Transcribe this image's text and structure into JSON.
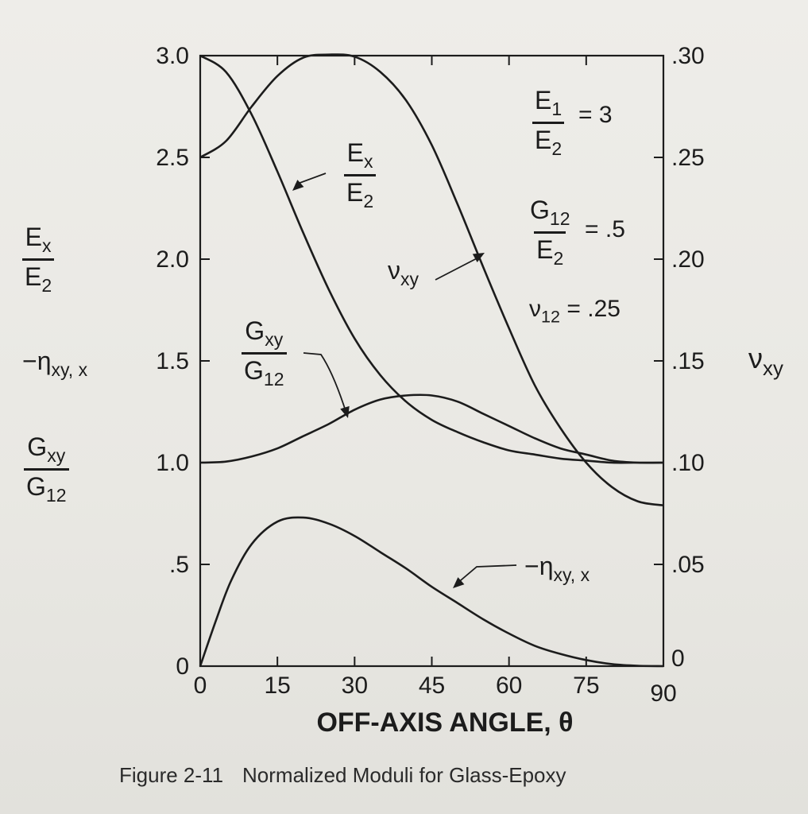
{
  "chart_data": {
    "type": "line",
    "xlabel": "OFF-AXIS ANGLE, θ",
    "x_ticks": [
      0,
      15,
      30,
      45,
      60,
      75,
      90
    ],
    "xlim": [
      0,
      90
    ],
    "y_left_ticks": [
      "0",
      ".5",
      "1.0",
      "1.5",
      "2.0",
      "2.5",
      "3.0"
    ],
    "ylim_left": [
      0,
      3.0
    ],
    "y_right_ticks": [
      "0",
      ".05",
      ".10",
      ".15",
      ".20",
      ".25",
      ".30"
    ],
    "ylim_right": [
      0,
      0.3
    ],
    "left_axis_labels": {
      "ex_num": "E",
      "ex_num_sub": "x",
      "ex_den": "E",
      "ex_den_sub": "2",
      "eta_prefix": "−η",
      "eta_sub": "xy, x",
      "gxy_num": "G",
      "gxy_num_sub": "xy",
      "gxy_den": "G",
      "gxy_den_sub": "12"
    },
    "right_axis_label": {
      "main": "ν",
      "sub": "xy"
    },
    "series": [
      {
        "name": "Ex/E2",
        "axis": "left",
        "x": [
          0,
          5,
          10,
          15,
          20,
          25,
          30,
          35,
          40,
          45,
          50,
          55,
          60,
          65,
          70,
          75,
          80,
          85,
          90
        ],
        "y": [
          3.0,
          2.92,
          2.71,
          2.43,
          2.13,
          1.85,
          1.61,
          1.43,
          1.3,
          1.21,
          1.15,
          1.1,
          1.06,
          1.04,
          1.02,
          1.01,
          1.0,
          1.0,
          1.0
        ]
      },
      {
        "name": "νxy",
        "axis": "right",
        "x": [
          0,
          5,
          10,
          15,
          20,
          25,
          30,
          35,
          40,
          45,
          50,
          55,
          60,
          65,
          70,
          75,
          80,
          85,
          90
        ],
        "y": [
          0.25,
          0.258,
          0.275,
          0.29,
          0.299,
          0.3005,
          0.2995,
          0.292,
          0.278,
          0.256,
          0.227,
          0.196,
          0.166,
          0.138,
          0.117,
          0.1,
          0.088,
          0.081,
          0.079
        ]
      },
      {
        "name": "Gxy/G12",
        "axis": "left",
        "x": [
          0,
          5,
          10,
          15,
          20,
          25,
          30,
          35,
          40,
          45,
          50,
          55,
          60,
          65,
          70,
          75,
          80,
          85,
          90
        ],
        "y": [
          1.0,
          1.005,
          1.03,
          1.07,
          1.13,
          1.19,
          1.26,
          1.31,
          1.33,
          1.33,
          1.3,
          1.24,
          1.18,
          1.12,
          1.07,
          1.04,
          1.01,
          1.0,
          1.0
        ]
      },
      {
        "name": "−ηxy,x",
        "axis": "left",
        "x": [
          0,
          3,
          6,
          10,
          15,
          20,
          25,
          30,
          35,
          40,
          45,
          50,
          55,
          60,
          65,
          70,
          75,
          80,
          85,
          90
        ],
        "y": [
          0,
          0.22,
          0.42,
          0.6,
          0.71,
          0.73,
          0.7,
          0.64,
          0.56,
          0.48,
          0.39,
          0.31,
          0.23,
          0.16,
          0.1,
          0.06,
          0.03,
          0.01,
          0.002,
          0
        ]
      }
    ],
    "annotations": {
      "ex": {
        "num": "E",
        "num_sub": "x",
        "den": "E",
        "den_sub": "2"
      },
      "nu": {
        "main": "ν",
        "sub": "xy"
      },
      "gxy": {
        "num": "G",
        "num_sub": "xy",
        "den": "G",
        "den_sub": "12"
      },
      "eta": {
        "main": "−η",
        "sub": "xy, x"
      }
    },
    "properties": {
      "e_ratio": {
        "num": "E",
        "num_sub": "1",
        "den": "E",
        "den_sub": "2",
        "value": "= 3"
      },
      "g_ratio": {
        "num": "G",
        "num_sub": "12",
        "den": "E",
        "den_sub": "2",
        "value": "= .5"
      },
      "nu12": {
        "main": "ν",
        "sub": "12",
        "value": "= .25"
      }
    },
    "caption": {
      "number": "Figure 2-11",
      "title": "Normalized Moduli for Glass-Epoxy"
    }
  }
}
